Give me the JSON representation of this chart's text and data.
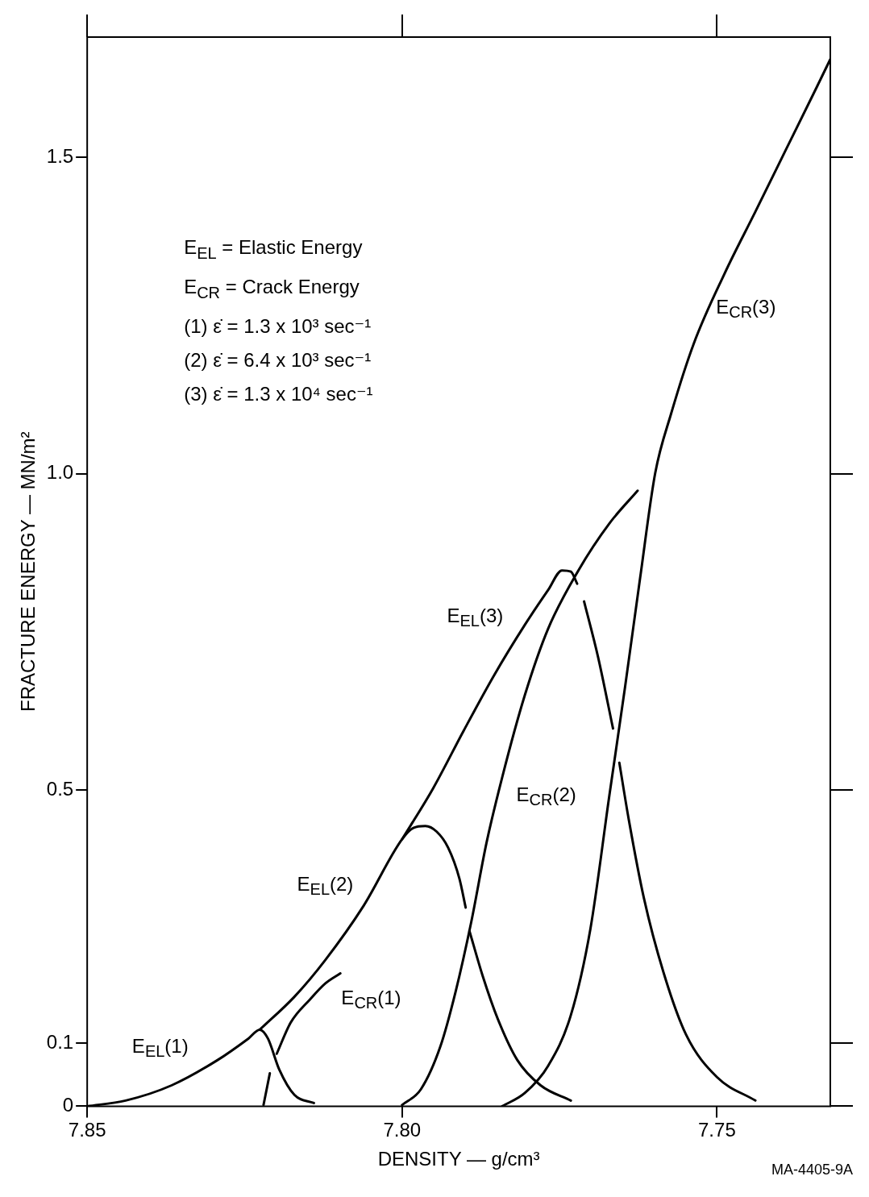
{
  "chart_data": {
    "type": "line",
    "xlabel": "DENSITY — g/cm³",
    "ylabel": "FRACTURE ENERGY — MN/m²",
    "xlim": [
      7.85,
      7.732
    ],
    "ylim": [
      0,
      1.69
    ],
    "xticks": [
      7.85,
      {
        "value": 7.8,
        "label": "7.80"
      },
      7.75
    ],
    "yticks": [
      0,
      0.1,
      0.5,
      {
        "value": 1,
        "label": "1.0"
      },
      1.5
    ],
    "grid": false,
    "legend": false,
    "marker": "none",
    "line_style": "solid",
    "series": [
      {
        "color": "#000000",
        "x": [
          7.85,
          7.8439,
          7.8366,
          7.8293,
          7.8244,
          7.8226,
          7.8213,
          7.8195,
          7.8171,
          7.814
        ],
        "values": [
          0,
          0.009,
          0.033,
          0.073,
          0.107,
          0.121,
          0.107,
          0.058,
          0.018,
          0.005
        ]
      },
      {
        "color": "#000000",
        "x": [
          7.822,
          7.821,
          7.8205,
          7.8199,
          7.8177,
          7.8146,
          7.8122,
          7.8098
        ],
        "values": [
          0.002,
          0.052,
          null,
          0.083,
          0.132,
          0.169,
          0.194,
          0.21
        ]
      },
      {
        "color": "#000000",
        "x": [
          7.8226,
          7.8171,
          7.8122,
          7.8061,
          7.8,
          7.7982,
          7.7963,
          7.7945,
          7.7927,
          7.7909,
          7.7899,
          7.7896,
          7.7893,
          7.7872,
          7.7848,
          7.7817,
          7.778,
          7.7732
        ],
        "values": [
          0.121,
          0.173,
          0.231,
          0.317,
          0.422,
          0.44,
          0.443,
          0.434,
          0.409,
          0.36,
          0.314,
          null,
          0.277,
          0.206,
          0.138,
          0.073,
          0.033,
          0.009
        ]
      },
      {
        "color": "#000000",
        "x": [
          7.8,
          7.797,
          7.7939,
          7.7915,
          7.789,
          7.7866,
          7.7841,
          7.7805,
          7.7768,
          7.772,
          7.7671,
          7.7626
        ],
        "values": [
          0.002,
          0.027,
          0.095,
          0.181,
          0.292,
          0.416,
          0.52,
          0.65,
          0.755,
          0.847,
          0.921,
          0.973
        ]
      },
      {
        "color": "#000000",
        "x": [
          7.8,
          7.7951,
          7.7902,
          7.7854,
          7.7805,
          7.7768,
          7.7746,
          7.7732,
          7.7722,
          7.7718,
          7.7711,
          7.7689,
          7.7665,
          7.766,
          7.7655,
          7.764,
          7.7616,
          7.7585,
          7.7549,
          7.75,
          7.7439
        ],
        "values": [
          0.422,
          0.502,
          0.594,
          0.681,
          0.761,
          0.816,
          0.847,
          0.845,
          0.826,
          null,
          0.798,
          0.711,
          0.597,
          null,
          0.543,
          0.453,
          0.329,
          0.212,
          0.113,
          0.046,
          0.009
        ]
      },
      {
        "color": "#000000",
        "x": [
          7.7841,
          7.7805,
          7.7768,
          7.7732,
          7.7701,
          7.7671,
          7.7646,
          7.7622,
          7.7598,
          7.7573,
          7.7537,
          7.7488,
          7.7439,
          7.739,
          7.7341,
          7.732
        ],
        "values": [
          0,
          0.021,
          0.064,
          0.144,
          0.28,
          0.49,
          0.662,
          0.835,
          1.001,
          1.094,
          1.205,
          1.316,
          1.414,
          1.513,
          1.612,
          1.655
        ]
      }
    ],
    "annotations": [
      "E$_{EL}$ = Elastic Energy",
      "E$_{CR}$ = Crack Energy",
      "(1) ε̇ = 1.3 x 10³ sec⁻¹",
      "(2) ε̇ = 6.4 x 10³ sec⁻¹",
      "(3) ε̇ = 1.3 x 10⁴ sec⁻¹",
      "E$_{EL}$(1)",
      "E$_{CR}$(1)",
      "E$_{EL}$(2)",
      "E$_{CR}$(2)",
      "E$_{EL}$(3)",
      "E$_{CR}$(3)",
      "MA-4405-9A"
    ]
  }
}
